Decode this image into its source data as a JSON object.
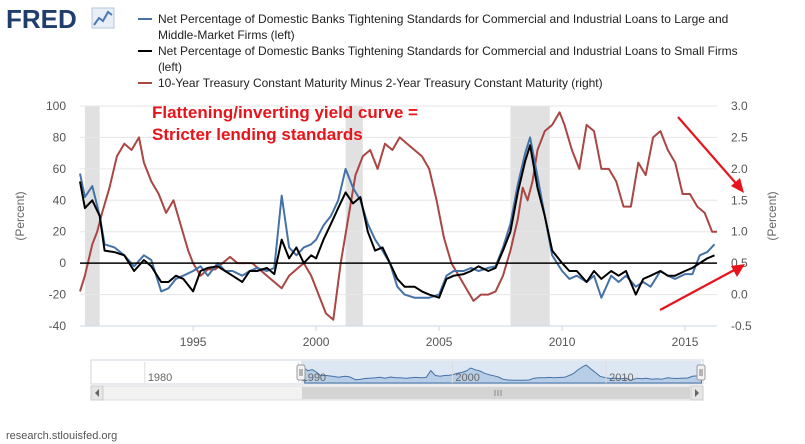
{
  "brand": "FRED",
  "source": "research.stlouisfed.org",
  "annotation": [
    "Flattening/inverting yield curve =",
    "Stricter lending standards"
  ],
  "colors": {
    "large_banks": "#4572a7",
    "small_firms": "#000000",
    "yield_curve": "#aa4643",
    "annotation": "#e8141b",
    "recession": "#e1e1e1",
    "navigator_fill": "#c7d7ec"
  },
  "chart_data": {
    "type": "line",
    "legend": [
      {
        "text_lines": [
          "Net Percentage of Domestic Banks Tightening Standards for Commercial and Industrial Loans to Large and",
          "Middle-Market Firms (left)"
        ]
      },
      {
        "text_lines": [
          "Net Percentage of Domestic Banks Tightening Standards for Commercial and Industrial Loans to Small Firms",
          "(left)"
        ]
      },
      {
        "text_lines": [
          "10-Year Treasury Constant Maturity Minus 2-Year Treasury Constant Maturity (right)"
        ]
      }
    ],
    "left_axis": {
      "title": "(Percent)",
      "ticks": [
        100,
        80,
        60,
        40,
        20,
        0,
        -20,
        -40
      ],
      "range": [
        -40,
        100
      ]
    },
    "right_axis": {
      "title": "(Percent)",
      "ticks": [
        "3.0",
        "2.5",
        "2.0",
        "1.5",
        "1.0",
        "0.5",
        "0.0",
        "-0.5"
      ],
      "range": [
        -0.5,
        3.0
      ]
    },
    "x_axis": {
      "ticks": [
        1995,
        2000,
        2005,
        2010,
        2015
      ],
      "range": [
        1990.4,
        2016.3
      ]
    },
    "recessions": [
      [
        1990.6,
        1991.2
      ],
      [
        2001.2,
        2001.9
      ],
      [
        2007.9,
        2009.5
      ]
    ],
    "series": [
      {
        "axis": "left",
        "x": [
          1990.4,
          1990.6,
          1990.9,
          1991.2,
          1991.4,
          1991.8,
          1992.2,
          1992.6,
          1993.0,
          1993.3,
          1993.7,
          1994.0,
          1994.3,
          1994.6,
          1995.0,
          1995.3,
          1995.6,
          1996.0,
          1996.3,
          1996.6,
          1997.0,
          1997.3,
          1997.6,
          1998.0,
          1998.3,
          1998.6,
          1998.9,
          1999.2,
          1999.5,
          1999.8,
          2000.0,
          2000.3,
          2000.6,
          2000.9,
          2001.2,
          2001.5,
          2001.8,
          2002.1,
          2002.4,
          2002.7,
          2003.0,
          2003.3,
          2003.6,
          2004.0,
          2004.3,
          2004.6,
          2005.0,
          2005.3,
          2005.6,
          2006.0,
          2006.3,
          2006.6,
          2007.0,
          2007.3,
          2007.6,
          2007.9,
          2008.2,
          2008.5,
          2008.7,
          2009.0,
          2009.3,
          2009.6,
          2010.0,
          2010.3,
          2010.6,
          2011.0,
          2011.3,
          2011.6,
          2012.0,
          2012.3,
          2012.6,
          2013.0,
          2013.3,
          2013.6,
          2014.0,
          2014.3,
          2014.6,
          2015.0,
          2015.3,
          2015.6,
          2015.9,
          2016.2
        ],
        "y": [
          57,
          42,
          49,
          30,
          12,
          10,
          5,
          -2,
          5,
          2,
          -18,
          -16,
          -10,
          -8,
          -5,
          -2,
          -8,
          0,
          -5,
          -5,
          -8,
          -5,
          -3,
          -5,
          -3,
          43,
          10,
          5,
          10,
          12,
          15,
          24,
          30,
          40,
          60,
          48,
          40,
          25,
          15,
          8,
          0,
          -15,
          -20,
          -22,
          -22,
          -22,
          -20,
          -8,
          -5,
          -5,
          -3,
          -5,
          -3,
          -2,
          10,
          25,
          50,
          70,
          80,
          55,
          30,
          5,
          -5,
          -10,
          -8,
          -12,
          -8,
          -22,
          -8,
          -12,
          -8,
          -15,
          -12,
          -15,
          -5,
          -8,
          -10,
          -7,
          -7,
          5,
          7,
          12
        ]
      },
      {
        "axis": "left",
        "x": [
          1990.4,
          1990.6,
          1990.9,
          1991.2,
          1991.4,
          1991.8,
          1992.2,
          1992.6,
          1993.0,
          1993.3,
          1993.7,
          1994.0,
          1994.3,
          1994.6,
          1995.0,
          1995.3,
          1995.6,
          1996.0,
          1996.3,
          1996.6,
          1997.0,
          1997.3,
          1997.6,
          1998.0,
          1998.3,
          1998.6,
          1998.9,
          1999.2,
          1999.5,
          1999.8,
          2000.0,
          2000.3,
          2000.6,
          2000.9,
          2001.2,
          2001.5,
          2001.8,
          2002.1,
          2002.4,
          2002.7,
          2003.0,
          2003.3,
          2003.6,
          2004.0,
          2004.3,
          2004.6,
          2005.0,
          2005.3,
          2005.6,
          2006.0,
          2006.3,
          2006.6,
          2007.0,
          2007.3,
          2007.6,
          2007.9,
          2008.2,
          2008.5,
          2008.7,
          2009.0,
          2009.3,
          2009.6,
          2010.0,
          2010.3,
          2010.6,
          2011.0,
          2011.3,
          2011.6,
          2012.0,
          2012.3,
          2012.6,
          2013.0,
          2013.3,
          2013.6,
          2014.0,
          2014.3,
          2014.6,
          2015.0,
          2015.3,
          2015.6,
          2015.9,
          2016.2
        ],
        "y": [
          52,
          35,
          40,
          30,
          8,
          7,
          5,
          -5,
          2,
          -2,
          -12,
          -12,
          -8,
          -10,
          -18,
          -5,
          -3,
          -2,
          -5,
          -8,
          -12,
          -5,
          -5,
          -3,
          -7,
          15,
          3,
          10,
          0,
          5,
          3,
          15,
          25,
          35,
          45,
          38,
          42,
          20,
          8,
          10,
          0,
          -10,
          -15,
          -15,
          -18,
          -20,
          -22,
          -10,
          -8,
          -7,
          -5,
          -2,
          -5,
          -3,
          8,
          20,
          45,
          65,
          75,
          48,
          30,
          8,
          0,
          -5,
          -5,
          -12,
          -5,
          -10,
          -5,
          -8,
          -5,
          -20,
          -10,
          -8,
          -5,
          -8,
          -8,
          -5,
          -3,
          0,
          3,
          5
        ]
      },
      {
        "axis": "right",
        "x": [
          1990.4,
          1990.6,
          1990.9,
          1991.1,
          1991.3,
          1991.6,
          1991.9,
          1992.2,
          1992.5,
          1992.8,
          1993.0,
          1993.3,
          1993.6,
          1993.9,
          1994.2,
          1994.5,
          1994.8,
          1995.0,
          1995.3,
          1995.6,
          1995.9,
          1996.2,
          1996.5,
          1996.8,
          1997.1,
          1997.4,
          1997.7,
          1998.0,
          1998.3,
          1998.6,
          1998.9,
          1999.2,
          1999.5,
          1999.8,
          2000.1,
          2000.4,
          2000.7,
          2001.0,
          2001.3,
          2001.6,
          2001.9,
          2002.2,
          2002.5,
          2002.8,
          2003.1,
          2003.4,
          2003.7,
          2004.0,
          2004.3,
          2004.6,
          2004.9,
          2005.2,
          2005.5,
          2005.8,
          2006.1,
          2006.4,
          2006.7,
          2007.0,
          2007.3,
          2007.6,
          2007.9,
          2008.2,
          2008.4,
          2008.6,
          2008.8,
          2009.0,
          2009.3,
          2009.6,
          2009.9,
          2010.1,
          2010.4,
          2010.7,
          2011.0,
          2011.3,
          2011.6,
          2011.9,
          2012.2,
          2012.5,
          2012.8,
          2013.1,
          2013.4,
          2013.7,
          2014.0,
          2014.3,
          2014.6,
          2014.9,
          2015.2,
          2015.5,
          2015.8,
          2016.1,
          2016.3
        ],
        "y": [
          0.05,
          0.3,
          0.8,
          1.0,
          1.3,
          1.7,
          2.2,
          2.4,
          2.3,
          2.5,
          2.1,
          1.8,
          1.6,
          1.3,
          1.5,
          1.1,
          0.7,
          0.5,
          0.3,
          0.4,
          0.4,
          0.5,
          0.6,
          0.5,
          0.5,
          0.5,
          0.4,
          0.3,
          0.2,
          0.1,
          0.3,
          0.4,
          0.5,
          0.3,
          0.0,
          -0.3,
          -0.4,
          0.5,
          1.2,
          1.9,
          2.2,
          2.3,
          2.0,
          2.4,
          2.3,
          2.5,
          2.4,
          2.3,
          2.2,
          2.0,
          1.5,
          0.9,
          0.5,
          0.3,
          0.1,
          -0.1,
          0.0,
          0.0,
          0.05,
          0.3,
          0.7,
          1.2,
          1.7,
          1.5,
          1.8,
          2.3,
          2.6,
          2.7,
          2.9,
          2.7,
          2.3,
          2.0,
          2.7,
          2.6,
          2.0,
          2.0,
          1.8,
          1.4,
          1.4,
          2.1,
          1.9,
          2.5,
          2.6,
          2.3,
          2.1,
          1.6,
          1.6,
          1.4,
          1.3,
          1.0,
          1.0
        ]
      }
    ],
    "navigator": {
      "ticks": [
        1980,
        1990,
        2000,
        2010
      ]
    }
  }
}
